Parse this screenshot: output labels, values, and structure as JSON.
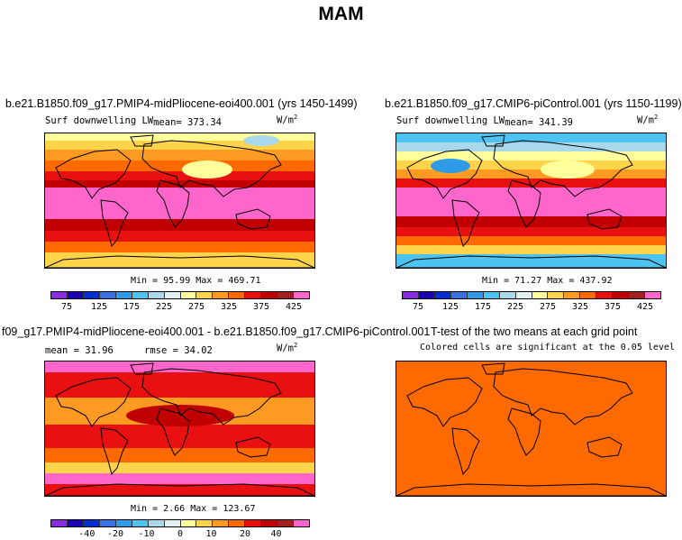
{
  "title": "MAM",
  "panel1": {
    "title": "b.e21.B1850.f09_g17.PMIP4-midPliocene-eoi400.001 (yrs 1450-1499)",
    "variable": "Surf downwelling LW",
    "mean_label": "mean= 373.34",
    "units": "W/m",
    "units_exp": "2",
    "stats": "Min =  95.99 Max = 469.71"
  },
  "panel2": {
    "title": "b.e21.B1850.f09_g17.CMIP6-piControl.001 (yrs 1150-1199)",
    "variable": "Surf downwelling LW",
    "mean_label": "mean= 341.39",
    "units": "W/m",
    "units_exp": "2",
    "stats": "Min =  71.27 Max = 437.92"
  },
  "panel3": {
    "title": "f09_g17.PMIP4-midPliocene-eoi400.001 - b.e21.B1850.f09_g17.CMIP6-piControl.001",
    "mean_label": "mean =  31.96",
    "rmse_label": "rmse =  34.02",
    "units": "W/m",
    "units_exp": "2",
    "stats": "Min =   2.66 Max = 123.67"
  },
  "panel4": {
    "title": "T-test of the two means at each grid point",
    "subtitle": "Colored cells are significant at the 0.05 level"
  },
  "colorbar_abs": {
    "colors": [
      "#8a2be2",
      "#1a00b0",
      "#0030d0",
      "#3c6fe0",
      "#2f9be8",
      "#4cc3f0",
      "#a8d8ea",
      "#e0f0f0",
      "#ffff9c",
      "#ffd34a",
      "#ff9a22",
      "#ff6a00",
      "#e81010",
      "#c00000",
      "#a32020",
      "#ff66cc"
    ],
    "labels": [
      "75",
      "125",
      "175",
      "225",
      "275",
      "325",
      "375",
      "425"
    ]
  },
  "colorbar_diff": {
    "colors": [
      "#8a2be2",
      "#1a00b0",
      "#0030d0",
      "#3c6fe0",
      "#2f9be8",
      "#4cc3f0",
      "#a8d8ea",
      "#e0f0f0",
      "#ffff9c",
      "#ffd34a",
      "#ff9a22",
      "#ff6a00",
      "#e81010",
      "#c00000",
      "#a32020",
      "#ff66cc"
    ],
    "labels": [
      "-40",
      "-20",
      "-10",
      "0",
      "10",
      "20",
      "40"
    ]
  },
  "ttest_color": "#ff6a00"
}
